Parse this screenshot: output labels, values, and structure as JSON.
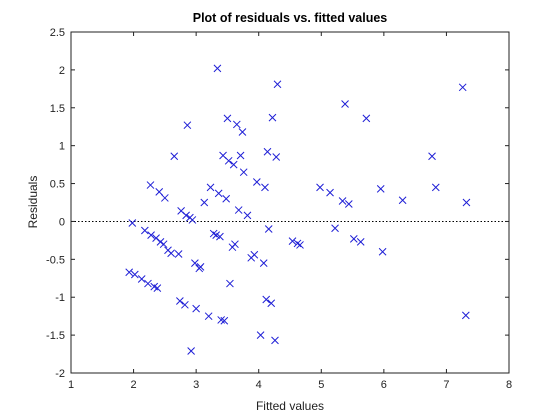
{
  "chart_data": {
    "type": "scatter",
    "title": "Plot of residuals vs. fitted values",
    "xlabel": "Fitted values",
    "ylabel": "Residuals",
    "xlim": [
      1,
      8
    ],
    "ylim": [
      -2,
      2.5
    ],
    "xticks": [
      1,
      2,
      3,
      4,
      5,
      6,
      7,
      8
    ],
    "yticks": [
      -2,
      -1.5,
      -1,
      -0.5,
      0,
      0.5,
      1,
      1.5,
      2,
      2.5
    ],
    "ytick_labels": [
      "-2",
      "-1.5",
      "-1",
      "-0.5",
      "0",
      "0.5",
      "1",
      "1.5",
      "2",
      "2.5"
    ],
    "reference_line": {
      "y": 0,
      "style": "dotted"
    },
    "marker": "x",
    "marker_color": "#1f1fd6",
    "grid": false,
    "points": [
      [
        1.93,
        -0.67
      ],
      [
        1.98,
        -0.02
      ],
      [
        2.02,
        -0.7
      ],
      [
        2.13,
        -0.76
      ],
      [
        2.18,
        -0.12
      ],
      [
        2.23,
        -0.82
      ],
      [
        2.27,
        0.48
      ],
      [
        2.28,
        -0.18
      ],
      [
        2.33,
        -0.86
      ],
      [
        2.36,
        -0.22
      ],
      [
        2.38,
        -0.88
      ],
      [
        2.41,
        0.39
      ],
      [
        2.43,
        -0.27
      ],
      [
        2.48,
        -0.3
      ],
      [
        2.5,
        0.31
      ],
      [
        2.55,
        -0.38
      ],
      [
        2.6,
        -0.42
      ],
      [
        2.65,
        0.86
      ],
      [
        2.72,
        -0.43
      ],
      [
        2.74,
        -1.05
      ],
      [
        2.76,
        0.14
      ],
      [
        2.82,
        -1.1
      ],
      [
        2.84,
        0.08
      ],
      [
        2.86,
        1.27
      ],
      [
        2.9,
        0.05
      ],
      [
        2.92,
        -1.71
      ],
      [
        2.94,
        0.02
      ],
      [
        2.98,
        -0.55
      ],
      [
        3.0,
        -1.15
      ],
      [
        3.05,
        -0.62
      ],
      [
        3.07,
        -0.6
      ],
      [
        3.13,
        0.25
      ],
      [
        3.2,
        -1.25
      ],
      [
        3.23,
        0.45
      ],
      [
        3.28,
        -0.16
      ],
      [
        3.32,
        -0.18
      ],
      [
        3.34,
        2.02
      ],
      [
        3.36,
        0.37
      ],
      [
        3.38,
        -0.2
      ],
      [
        3.4,
        -1.3
      ],
      [
        3.43,
        0.87
      ],
      [
        3.45,
        -1.31
      ],
      [
        3.48,
        0.3
      ],
      [
        3.5,
        1.36
      ],
      [
        3.52,
        0.8
      ],
      [
        3.54,
        -0.82
      ],
      [
        3.58,
        -0.34
      ],
      [
        3.6,
        0.75
      ],
      [
        3.62,
        -0.3
      ],
      [
        3.65,
        1.28
      ],
      [
        3.68,
        0.15
      ],
      [
        3.71,
        0.87
      ],
      [
        3.74,
        1.18
      ],
      [
        3.76,
        0.65
      ],
      [
        3.82,
        0.08
      ],
      [
        3.88,
        -0.48
      ],
      [
        3.93,
        -0.44
      ],
      [
        3.97,
        0.52
      ],
      [
        4.03,
        -1.5
      ],
      [
        4.08,
        -0.55
      ],
      [
        4.1,
        0.45
      ],
      [
        4.12,
        -1.03
      ],
      [
        4.14,
        0.92
      ],
      [
        4.16,
        -0.1
      ],
      [
        4.2,
        -1.08
      ],
      [
        4.22,
        1.37
      ],
      [
        4.26,
        -1.57
      ],
      [
        4.28,
        0.85
      ],
      [
        4.3,
        1.81
      ],
      [
        4.54,
        -0.26
      ],
      [
        4.62,
        -0.29
      ],
      [
        4.66,
        -0.31
      ],
      [
        4.98,
        0.45
      ],
      [
        5.14,
        0.38
      ],
      [
        5.22,
        -0.09
      ],
      [
        5.34,
        0.27
      ],
      [
        5.38,
        1.55
      ],
      [
        5.44,
        0.23
      ],
      [
        5.52,
        -0.23
      ],
      [
        5.63,
        -0.27
      ],
      [
        5.72,
        1.36
      ],
      [
        5.95,
        0.43
      ],
      [
        5.98,
        -0.4
      ],
      [
        6.3,
        0.28
      ],
      [
        6.77,
        0.86
      ],
      [
        6.83,
        0.45
      ],
      [
        7.26,
        1.77
      ],
      [
        7.31,
        -1.24
      ],
      [
        7.32,
        0.25
      ]
    ]
  }
}
